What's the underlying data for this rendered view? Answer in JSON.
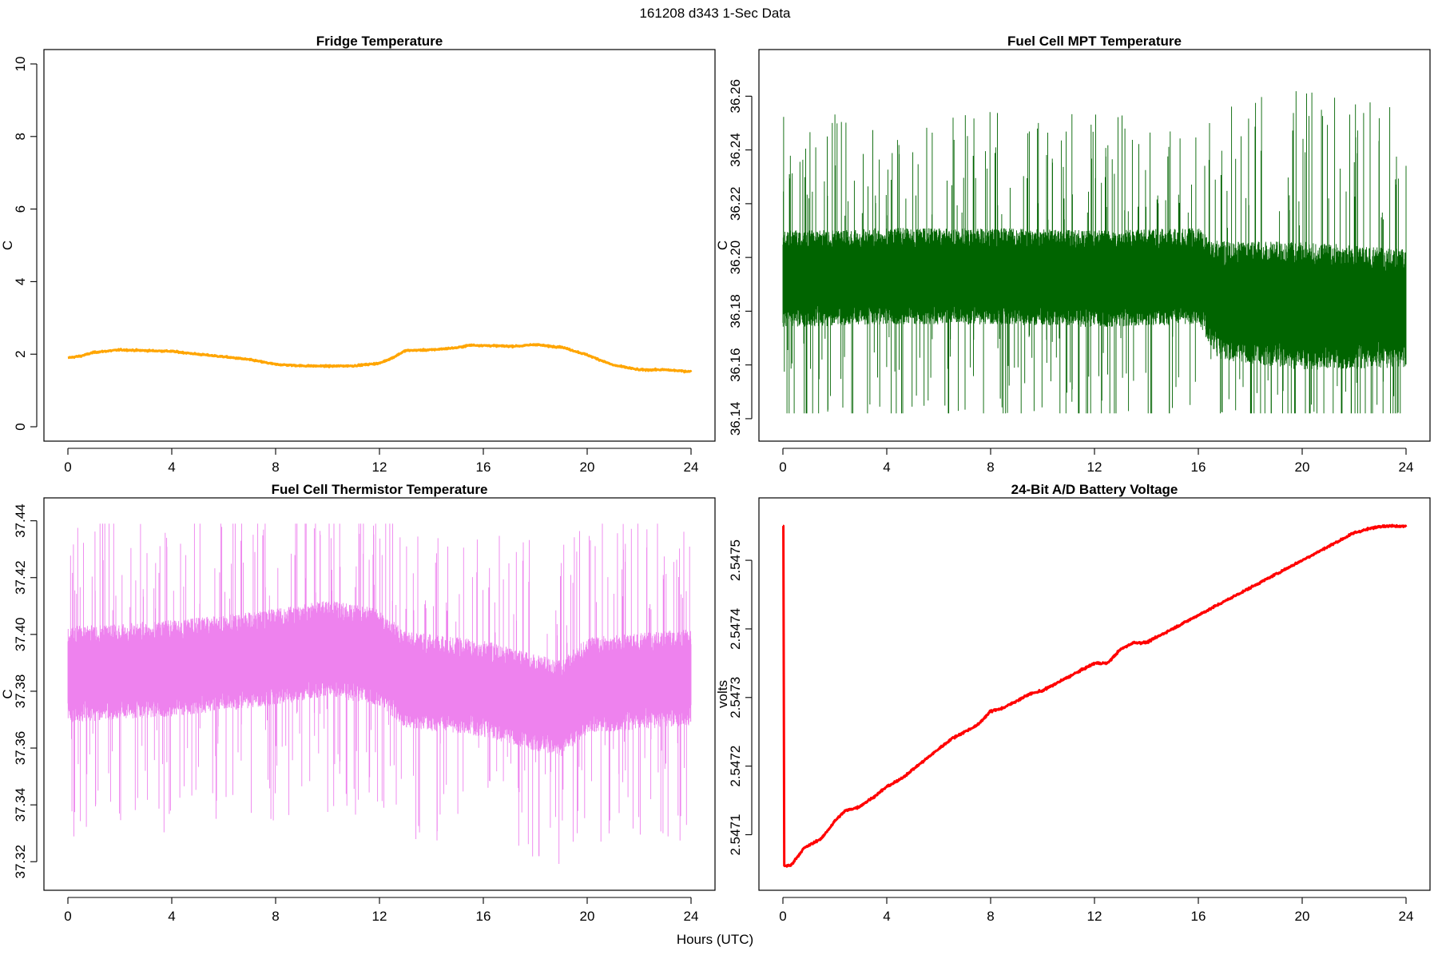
{
  "figure": {
    "suptitle": "161208   d343   1-Sec Data",
    "xlabel": "Hours (UTC)"
  },
  "chart_data": [
    {
      "type": "line",
      "title": "Fridge Temperature",
      "ylabel": "C",
      "xlabel": "",
      "xlim": [
        0,
        24
      ],
      "ylim": [
        0,
        10
      ],
      "xticks": [
        0,
        4,
        8,
        12,
        16,
        20,
        24
      ],
      "xtick_labels": [
        "0",
        "4",
        "8",
        "12",
        "16",
        "20",
        "24"
      ],
      "yticks": [
        0,
        2,
        4,
        6,
        8,
        10
      ],
      "ytick_labels": [
        "0",
        "2",
        "4",
        "6",
        "8",
        "10"
      ],
      "color": "#FFA500",
      "noise": 0.02,
      "style": "line",
      "series": [
        {
          "name": "Fridge Temperature",
          "x": [
            0,
            0.5,
            1,
            2,
            3,
            4,
            5,
            6,
            7,
            8,
            9,
            10,
            11,
            12,
            12.5,
            13,
            14,
            15,
            15.5,
            16,
            17,
            17.5,
            18,
            18.5,
            19,
            20,
            21,
            22,
            23,
            24
          ],
          "y": [
            1.9,
            1.95,
            2.05,
            2.12,
            2.1,
            2.08,
            2.0,
            1.93,
            1.85,
            1.72,
            1.68,
            1.67,
            1.68,
            1.75,
            1.9,
            2.1,
            2.12,
            2.18,
            2.25,
            2.24,
            2.22,
            2.23,
            2.27,
            2.22,
            2.2,
            1.98,
            1.7,
            1.57,
            1.57,
            1.52
          ]
        }
      ]
    },
    {
      "type": "line",
      "title": "Fuel Cell MPT Temperature",
      "ylabel": "C",
      "xlabel": "",
      "xlim": [
        0,
        24
      ],
      "ylim": [
        36.137,
        36.272
      ],
      "xticks": [
        0,
        4,
        8,
        12,
        16,
        20,
        24
      ],
      "xtick_labels": [
        "0",
        "4",
        "8",
        "12",
        "16",
        "20",
        "24"
      ],
      "yticks": [
        36.14,
        36.16,
        36.18,
        36.2,
        36.22,
        36.24,
        36.26
      ],
      "ytick_labels": [
        "36.14",
        "36.16",
        "36.18",
        "36.20",
        "36.22",
        "36.24",
        "36.26"
      ],
      "color": "#006400",
      "style": "noise",
      "envelope": {
        "x": [
          0,
          4,
          8,
          12,
          16,
          16.8,
          20,
          24
        ],
        "center": [
          36.192,
          36.193,
          36.193,
          36.192,
          36.193,
          36.184,
          36.182,
          36.181
        ],
        "half_width": [
          0.018,
          0.018,
          0.018,
          0.018,
          0.018,
          0.022,
          0.024,
          0.022
        ]
      },
      "y_min": 36.142,
      "y_max": 36.263
    },
    {
      "type": "line",
      "title": "Fuel Cell Thermistor Temperature",
      "ylabel": "C",
      "xlabel": "",
      "xlim": [
        0,
        24
      ],
      "ylim": [
        37.315,
        37.443
      ],
      "xticks": [
        0,
        4,
        8,
        12,
        16,
        20,
        24
      ],
      "xtick_labels": [
        "0",
        "4",
        "8",
        "12",
        "16",
        "20",
        "24"
      ],
      "yticks": [
        37.32,
        37.34,
        37.36,
        37.38,
        37.4,
        37.42,
        37.44
      ],
      "ytick_labels": [
        "37.32",
        "37.34",
        "37.36",
        "37.38",
        "37.40",
        "37.42",
        "37.44"
      ],
      "color": "#EE82EE",
      "style": "noise",
      "envelope": {
        "x": [
          0,
          4,
          8,
          10,
          12,
          13,
          16,
          18,
          19,
          20,
          24
        ],
        "center": [
          37.386,
          37.388,
          37.392,
          37.395,
          37.392,
          37.384,
          37.381,
          37.376,
          37.374,
          37.382,
          37.385
        ],
        "half_width": [
          0.017,
          0.017,
          0.017,
          0.017,
          0.017,
          0.017,
          0.017,
          0.017,
          0.017,
          0.017,
          0.017
        ]
      },
      "y_min": 37.319,
      "y_max": 37.439
    },
    {
      "type": "line",
      "title": "24-Bit A/D Battery Voltage",
      "ylabel": "volts",
      "xlabel": "",
      "xlim": [
        0,
        24
      ],
      "ylim": [
        2.54704,
        2.54757
      ],
      "xticks": [
        0,
        4,
        8,
        12,
        16,
        20,
        24
      ],
      "xtick_labels": [
        "0",
        "4",
        "8",
        "12",
        "16",
        "20",
        "24"
      ],
      "yticks": [
        2.5471,
        2.5472,
        2.5473,
        2.5474,
        2.5475
      ],
      "ytick_labels": [
        "2.5471",
        "2.5472",
        "2.5473",
        "2.5474",
        "2.5475"
      ],
      "color": "#FF0000",
      "noise": 1.5e-06,
      "style": "line",
      "series": [
        {
          "name": "24-Bit A/D Battery Voltage",
          "x": [
            0,
            0.02,
            0.05,
            0.3,
            0.8,
            1.5,
            2.0,
            2.4,
            2.9,
            3.5,
            4.0,
            4.5,
            5.0,
            5.5,
            6.0,
            6.5,
            7.0,
            7.5,
            8.0,
            8.5,
            9.0,
            9.5,
            10.0,
            10.5,
            11.0,
            11.5,
            12.0,
            12.5,
            13.0,
            13.5,
            14.0,
            14.5,
            15.0,
            15.5,
            16.0,
            16.5,
            17.0,
            17.5,
            18.0,
            18.5,
            19.0,
            19.5,
            20.0,
            20.5,
            21.0,
            21.5,
            22.0,
            22.5,
            23.0,
            23.5,
            24.0
          ],
          "y": [
            2.54755,
            2.54755,
            2.547055,
            2.547055,
            2.54708,
            2.547095,
            2.54712,
            2.547135,
            2.54714,
            2.547155,
            2.54717,
            2.54718,
            2.547195,
            2.54721,
            2.547225,
            2.54724,
            2.54725,
            2.54726,
            2.54728,
            2.547285,
            2.547295,
            2.547305,
            2.54731,
            2.54732,
            2.54733,
            2.54734,
            2.54735,
            2.54735,
            2.54737,
            2.54738,
            2.54738,
            2.54739,
            2.5474,
            2.54741,
            2.54742,
            2.54743,
            2.54744,
            2.54745,
            2.54746,
            2.54747,
            2.54748,
            2.54749,
            2.5475,
            2.54751,
            2.54752,
            2.54753,
            2.54754,
            2.547545,
            2.54755,
            2.54755,
            2.54755
          ]
        }
      ]
    }
  ]
}
